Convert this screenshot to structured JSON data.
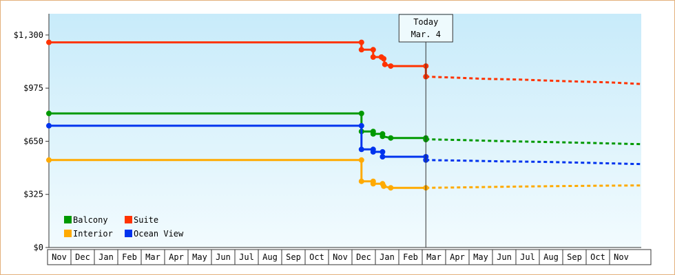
{
  "chart_data": {
    "type": "line",
    "title": "",
    "xlabel": "",
    "ylabel": "",
    "ylim": [
      0,
      1430
    ],
    "yticks": [
      {
        "value": 0,
        "label": "$0"
      },
      {
        "value": 325,
        "label": "$325"
      },
      {
        "value": 650,
        "label": "$650"
      },
      {
        "value": 975,
        "label": "$975"
      },
      {
        "value": 1300,
        "label": "$1,300"
      }
    ],
    "x_months": [
      "Nov",
      "Dec",
      "Jan",
      "Feb",
      "Mar",
      "Apr",
      "May",
      "Jun",
      "Jul",
      "Aug",
      "Sep",
      "Oct",
      "Nov",
      "Dec",
      "Jan",
      "Feb",
      "Mar",
      "Apr",
      "May",
      "Jun",
      "Jul",
      "Aug",
      "Sep",
      "Oct",
      "Nov"
    ],
    "x_domain": [
      0,
      25.3
    ],
    "today": {
      "label_line1": "Today",
      "label_line2": "Mar. 4",
      "x": 16.1
    },
    "grid": false,
    "legend_placement": "bottom-left",
    "series": [
      {
        "name": "Suite",
        "color": "#ff3300",
        "history": [
          [
            0,
            1255
          ],
          [
            13.35,
            1255
          ],
          [
            13.35,
            1210
          ],
          [
            13.35,
            1210
          ],
          [
            13.85,
            1210
          ],
          [
            13.85,
            1165
          ],
          [
            14.2,
            1165
          ],
          [
            14.3,
            1155
          ],
          [
            14.35,
            1120
          ],
          [
            14.6,
            1110
          ],
          [
            16.1,
            1110
          ],
          [
            16.1,
            1045
          ]
        ],
        "markers": [
          [
            0,
            1255
          ],
          [
            13.35,
            1255
          ],
          [
            13.35,
            1210
          ],
          [
            13.85,
            1210
          ],
          [
            13.85,
            1165
          ],
          [
            14.2,
            1165
          ],
          [
            14.3,
            1155
          ],
          [
            14.35,
            1120
          ],
          [
            14.6,
            1110
          ],
          [
            16.1,
            1110
          ],
          [
            16.1,
            1045
          ]
        ],
        "forecast": [
          [
            16.1,
            1045
          ],
          [
            17.2,
            1040
          ],
          [
            18.5,
            1032
          ],
          [
            20,
            1028
          ],
          [
            22,
            1018
          ],
          [
            24,
            1010
          ],
          [
            25.3,
            1000
          ]
        ]
      },
      {
        "name": "Balcony",
        "color": "#009900",
        "history": [
          [
            0,
            820
          ],
          [
            13.35,
            820
          ],
          [
            13.35,
            710
          ],
          [
            13.85,
            710
          ],
          [
            13.85,
            695
          ],
          [
            14.25,
            695
          ],
          [
            14.25,
            680
          ],
          [
            14.6,
            670
          ],
          [
            16.1,
            670
          ]
        ],
        "markers": [
          [
            0,
            820
          ],
          [
            13.35,
            820
          ],
          [
            13.35,
            710
          ],
          [
            13.85,
            710
          ],
          [
            13.85,
            695
          ],
          [
            14.25,
            695
          ],
          [
            14.25,
            680
          ],
          [
            14.6,
            670
          ],
          [
            16.1,
            670
          ],
          [
            16.1,
            660
          ]
        ],
        "forecast": [
          [
            16.1,
            662
          ],
          [
            17.5,
            658
          ],
          [
            19,
            652
          ],
          [
            21,
            646
          ],
          [
            23,
            640
          ],
          [
            25.3,
            632
          ]
        ]
      },
      {
        "name": "Ocean View",
        "color": "#0033ee",
        "history": [
          [
            0,
            745
          ],
          [
            13.35,
            745
          ],
          [
            13.35,
            600
          ],
          [
            13.85,
            600
          ],
          [
            13.85,
            585
          ],
          [
            14.25,
            585
          ],
          [
            14.25,
            555
          ],
          [
            16.1,
            555
          ],
          [
            16.1,
            535
          ]
        ],
        "markers": [
          [
            0,
            745
          ],
          [
            13.35,
            745
          ],
          [
            13.35,
            600
          ],
          [
            13.85,
            600
          ],
          [
            13.85,
            585
          ],
          [
            14.25,
            585
          ],
          [
            14.25,
            555
          ],
          [
            16.1,
            555
          ],
          [
            16.1,
            535
          ]
        ],
        "forecast": [
          [
            16.1,
            535
          ],
          [
            17.5,
            532
          ],
          [
            19,
            528
          ],
          [
            21,
            524
          ],
          [
            23,
            518
          ],
          [
            25.3,
            510
          ]
        ]
      },
      {
        "name": "Interior",
        "color": "#ffaa00",
        "history": [
          [
            0,
            535
          ],
          [
            13.35,
            535
          ],
          [
            13.35,
            405
          ],
          [
            13.85,
            405
          ],
          [
            13.85,
            390
          ],
          [
            14.25,
            390
          ],
          [
            14.25,
            375
          ],
          [
            14.6,
            365
          ],
          [
            16.1,
            365
          ]
        ],
        "markers": [
          [
            0,
            535
          ],
          [
            13.35,
            535
          ],
          [
            13.35,
            405
          ],
          [
            13.85,
            405
          ],
          [
            13.85,
            390
          ],
          [
            14.25,
            390
          ],
          [
            14.3,
            375
          ],
          [
            14.6,
            365
          ],
          [
            16.1,
            365
          ]
        ],
        "forecast": [
          [
            16.1,
            365
          ],
          [
            17.8,
            368
          ],
          [
            19.5,
            372
          ],
          [
            21.5,
            375
          ],
          [
            23.5,
            378
          ],
          [
            25.3,
            380
          ]
        ]
      }
    ],
    "legend": [
      {
        "name": "Balcony",
        "color": "#009900"
      },
      {
        "name": "Suite",
        "color": "#ff3300"
      },
      {
        "name": "Interior",
        "color": "#ffaa00"
      },
      {
        "name": "Ocean View",
        "color": "#0033ee"
      }
    ]
  }
}
